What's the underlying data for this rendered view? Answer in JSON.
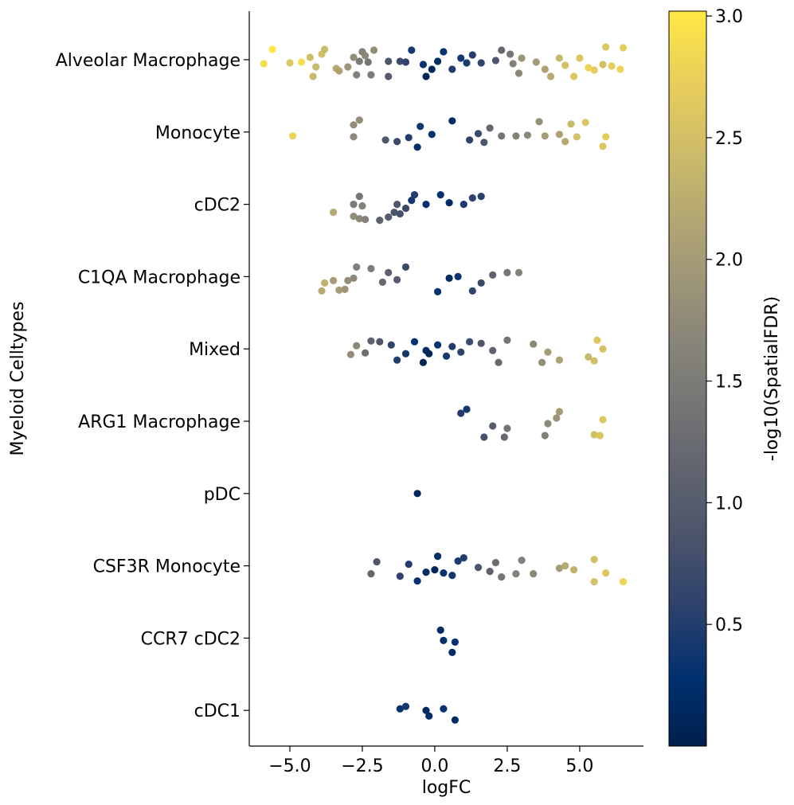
{
  "chart_data": {
    "type": "scatter",
    "xlabel": "logFC",
    "ylabel": "Myeloid Celltypes",
    "xlim": [
      -6.4,
      7.2
    ],
    "x_ticks": [
      -5.0,
      -2.5,
      0.0,
      2.5,
      5.0
    ],
    "x_tick_labels": [
      "−5.0",
      "−2.5",
      "0.0",
      "2.5",
      "5.0"
    ],
    "categories": [
      "Alveolar Macrophage",
      "Monocyte",
      "cDC2",
      "C1QA Macrophage",
      "Mixed",
      "ARG1 Macrophage",
      "pDC",
      "CSF3R Monocyte",
      "CCR7 cDC2",
      "cDC1"
    ],
    "color_metric": "-log10(SpatialFDR)",
    "colorbar": {
      "label": "-log10(SpatialFDR)",
      "range": [
        0.0,
        3.02
      ],
      "ticks": [
        0.5,
        1.0,
        1.5,
        2.0,
        2.5,
        3.0
      ],
      "tick_labels": [
        "0.5",
        "1.0",
        "1.5",
        "2.0",
        "2.5",
        "3.0"
      ],
      "colormap": "cividis",
      "colors": [
        "#00204c",
        "#00306f",
        "#2a406c",
        "#48526b",
        "#5e626e",
        "#727374",
        "#878479",
        "#9e9677",
        "#b6a971",
        "#d0be67",
        "#eacf5a",
        "#ffe945"
      ]
    },
    "grid": false,
    "legend": "colorbar-right",
    "series": [
      {
        "category": "Alveolar Macrophage",
        "points": [
          [
            -5.9,
            0.05,
            2.9
          ],
          [
            -5.6,
            -0.13,
            3.0
          ],
          [
            -5.0,
            0.04,
            2.6
          ],
          [
            -4.6,
            0.03,
            2.9
          ],
          [
            -4.2,
            0.21,
            2.4
          ],
          [
            -4.3,
            -0.03,
            2.5
          ],
          [
            -4.1,
            0.09,
            2.4
          ],
          [
            -3.9,
            -0.07,
            2.5
          ],
          [
            -3.8,
            -0.13,
            2.4
          ],
          [
            -3.4,
            0.11,
            2.2
          ],
          [
            -3.3,
            0.14,
            2.1
          ],
          [
            -3.0,
            0.09,
            1.9
          ],
          [
            -2.8,
            -0.03,
            1.8
          ],
          [
            -2.7,
            0.19,
            1.6
          ],
          [
            -2.6,
            0.02,
            1.5
          ],
          [
            -2.5,
            -0.1,
            1.6
          ],
          [
            -2.4,
            -0.05,
            1.7
          ],
          [
            -2.3,
            0.03,
            1.4
          ],
          [
            -2.2,
            0.19,
            1.5
          ],
          [
            -2.1,
            -0.12,
            1.8
          ],
          [
            -1.6,
            0.21,
            1.0
          ],
          [
            -1.6,
            0.02,
            0.9
          ],
          [
            -1.2,
            0.02,
            0.7
          ],
          [
            -1.0,
            0.03,
            0.6
          ],
          [
            -0.8,
            -0.12,
            0.4
          ],
          [
            -0.4,
            0.06,
            0.3
          ],
          [
            -0.3,
            0.21,
            0.1
          ],
          [
            -0.1,
            0.12,
            0.15
          ],
          [
            0.1,
            0.02,
            0.2
          ],
          [
            0.3,
            -0.1,
            0.3
          ],
          [
            0.6,
            0.12,
            0.5
          ],
          [
            0.9,
            -0.02,
            0.4
          ],
          [
            1.1,
            0.04,
            0.45
          ],
          [
            1.3,
            -0.06,
            0.5
          ],
          [
            1.6,
            0.04,
            0.6
          ],
          [
            2.1,
            0.01,
            0.9
          ],
          [
            2.3,
            -0.12,
            1.2
          ],
          [
            2.6,
            -0.07,
            1.4
          ],
          [
            2.7,
            0.05,
            1.6
          ],
          [
            2.9,
            0.17,
            1.7
          ],
          [
            3.0,
            -0.02,
            1.9
          ],
          [
            3.5,
            0.03,
            2.0
          ],
          [
            3.8,
            0.12,
            2.1
          ],
          [
            4.0,
            0.21,
            2.2
          ],
          [
            4.3,
            -0.02,
            2.4
          ],
          [
            4.5,
            0.07,
            2.5
          ],
          [
            4.8,
            0.21,
            2.6
          ],
          [
            5.0,
            -0.02,
            2.6
          ],
          [
            5.3,
            0.1,
            2.8
          ],
          [
            5.5,
            0.13,
            2.7
          ],
          [
            5.8,
            0.06,
            2.5
          ],
          [
            5.9,
            -0.16,
            2.6
          ],
          [
            6.1,
            0.08,
            2.7
          ],
          [
            6.4,
            0.12,
            2.8
          ],
          [
            6.5,
            -0.15,
            2.7
          ]
        ]
      },
      {
        "category": "Monocyte",
        "points": [
          [
            -4.9,
            0.05,
            2.8
          ],
          [
            -2.8,
            0.06,
            1.7
          ],
          [
            -2.8,
            -0.09,
            1.8
          ],
          [
            -2.6,
            -0.15,
            1.8
          ],
          [
            -1.7,
            0.1,
            0.9
          ],
          [
            -1.3,
            0.12,
            0.7
          ],
          [
            -0.9,
            0.07,
            0.5
          ],
          [
            -0.6,
            0.19,
            0.2
          ],
          [
            -0.5,
            -0.07,
            0.4
          ],
          [
            -0.1,
            0.03,
            0.3
          ],
          [
            0.6,
            -0.14,
            0.2
          ],
          [
            1.2,
            0.1,
            0.6
          ],
          [
            1.5,
            0.02,
            0.7
          ],
          [
            1.7,
            0.13,
            0.9
          ],
          [
            1.9,
            -0.05,
            1.2
          ],
          [
            2.3,
            0.05,
            1.4
          ],
          [
            2.8,
            0.05,
            1.6
          ],
          [
            3.2,
            0.04,
            1.7
          ],
          [
            3.6,
            -0.13,
            1.8
          ],
          [
            3.8,
            0.05,
            2.0
          ],
          [
            4.3,
            0.03,
            2.1
          ],
          [
            4.5,
            0.12,
            2.2
          ],
          [
            4.7,
            -0.1,
            2.4
          ],
          [
            4.9,
            0.06,
            2.5
          ],
          [
            5.2,
            -0.12,
            2.6
          ],
          [
            5.8,
            0.18,
            2.6
          ],
          [
            5.9,
            0.06,
            2.7
          ]
        ]
      },
      {
        "category": "cDC2",
        "points": [
          [
            -3.5,
            0.1,
            2.2
          ],
          [
            -2.8,
            0.15,
            1.8
          ],
          [
            -2.6,
            0.18,
            1.7
          ],
          [
            -2.4,
            0.19,
            1.6
          ],
          [
            -2.6,
            -0.1,
            1.4
          ],
          [
            -2.8,
            0.0,
            1.5
          ],
          [
            -2.5,
            0.02,
            1.6
          ],
          [
            -1.9,
            0.2,
            1.1
          ],
          [
            -1.6,
            0.16,
            1.0
          ],
          [
            -1.4,
            0.1,
            0.9
          ],
          [
            -1.2,
            0.12,
            0.8
          ],
          [
            -1.0,
            0.05,
            0.7
          ],
          [
            -0.8,
            -0.05,
            0.4
          ],
          [
            -1.3,
            0.0,
            0.9
          ],
          [
            -0.7,
            -0.12,
            0.5
          ],
          [
            -0.3,
            0.0,
            0.3
          ],
          [
            0.2,
            -0.12,
            0.3
          ],
          [
            0.5,
            -0.02,
            0.2
          ],
          [
            1.0,
            0.0,
            0.45
          ],
          [
            1.3,
            -0.08,
            0.6
          ],
          [
            1.6,
            -0.1,
            0.55
          ]
        ]
      },
      {
        "category": "C1QA Macrophage",
        "points": [
          [
            -3.9,
            0.18,
            2.2
          ],
          [
            -3.8,
            0.08,
            2.3
          ],
          [
            -3.5,
            0.05,
            2.0
          ],
          [
            -3.3,
            0.17,
            2.0
          ],
          [
            -3.1,
            0.16,
            1.9
          ],
          [
            -3.0,
            0.05,
            1.8
          ],
          [
            -2.8,
            0.02,
            1.7
          ],
          [
            -2.7,
            -0.12,
            1.6
          ],
          [
            -2.2,
            -0.1,
            1.5
          ],
          [
            -1.8,
            0.07,
            1.2
          ],
          [
            -1.6,
            -0.05,
            1.1
          ],
          [
            -1.3,
            0.04,
            1.0
          ],
          [
            -1.0,
            -0.12,
            0.7
          ],
          [
            0.1,
            0.19,
            0.3
          ],
          [
            0.5,
            0.02,
            0.2
          ],
          [
            0.8,
            0.0,
            0.35
          ],
          [
            1.3,
            0.18,
            0.6
          ],
          [
            1.6,
            0.08,
            0.7
          ],
          [
            2.0,
            -0.02,
            1.1
          ],
          [
            2.5,
            -0.05,
            1.4
          ],
          [
            2.9,
            -0.05,
            1.6
          ]
        ]
      },
      {
        "category": "Mixed",
        "points": [
          [
            -2.9,
            0.07,
            1.8
          ],
          [
            -2.7,
            -0.04,
            1.7
          ],
          [
            -2.4,
            0.05,
            1.3
          ],
          [
            -2.2,
            -0.1,
            1.1
          ],
          [
            -1.9,
            -0.09,
            0.9
          ],
          [
            -1.5,
            -0.05,
            0.6
          ],
          [
            -1.3,
            0.14,
            0.5
          ],
          [
            -1.0,
            0.06,
            0.4
          ],
          [
            -0.7,
            -0.09,
            0.3
          ],
          [
            -0.4,
            0.17,
            0.1
          ],
          [
            -0.3,
            0.02,
            0.2
          ],
          [
            -0.2,
            0.06,
            0.1
          ],
          [
            0.1,
            -0.05,
            0.3
          ],
          [
            0.4,
            0.09,
            0.4
          ],
          [
            0.6,
            -0.03,
            0.5
          ],
          [
            0.9,
            0.04,
            0.6
          ],
          [
            1.2,
            -0.09,
            0.7
          ],
          [
            1.6,
            -0.07,
            0.9
          ],
          [
            2.0,
            0.02,
            1.1
          ],
          [
            2.2,
            0.17,
            1.2
          ],
          [
            2.5,
            -0.11,
            1.4
          ],
          [
            3.4,
            -0.06,
            1.7
          ],
          [
            3.7,
            0.17,
            1.8
          ],
          [
            3.9,
            0.04,
            2.0
          ],
          [
            4.3,
            0.14,
            2.1
          ],
          [
            5.3,
            0.1,
            2.4
          ],
          [
            5.5,
            0.15,
            2.5
          ],
          [
            5.6,
            -0.11,
            2.6
          ],
          [
            5.8,
            0.0,
            2.5
          ]
        ]
      },
      {
        "category": "ARG1 Macrophage",
        "points": [
          [
            0.9,
            -0.1,
            0.5
          ],
          [
            1.1,
            -0.15,
            0.4
          ],
          [
            1.7,
            0.2,
            0.8
          ],
          [
            2.0,
            0.06,
            1.0
          ],
          [
            2.4,
            0.2,
            1.2
          ],
          [
            2.5,
            0.09,
            1.4
          ],
          [
            3.8,
            0.18,
            1.6
          ],
          [
            3.9,
            0.03,
            1.7
          ],
          [
            4.2,
            -0.04,
            1.9
          ],
          [
            4.3,
            -0.12,
            2.0
          ],
          [
            5.5,
            0.17,
            2.5
          ],
          [
            5.7,
            0.18,
            2.6
          ],
          [
            5.8,
            -0.02,
            2.6
          ]
        ]
      },
      {
        "category": "pDC",
        "points": [
          [
            -0.6,
            0.0,
            0.1
          ]
        ]
      },
      {
        "category": "CSF3R Monocyte",
        "points": [
          [
            -2.2,
            0.1,
            1.2
          ],
          [
            -2.0,
            -0.05,
            0.9
          ],
          [
            -1.2,
            0.13,
            0.6
          ],
          [
            -0.9,
            -0.02,
            0.5
          ],
          [
            -0.6,
            0.19,
            0.3
          ],
          [
            -0.3,
            0.08,
            0.2
          ],
          [
            0.0,
            0.05,
            0.1
          ],
          [
            0.1,
            -0.12,
            0.2
          ],
          [
            0.3,
            0.09,
            0.3
          ],
          [
            0.6,
            0.12,
            0.4
          ],
          [
            0.8,
            -0.06,
            0.45
          ],
          [
            1.0,
            -0.1,
            0.5
          ],
          [
            1.5,
            0.02,
            0.9
          ],
          [
            1.9,
            0.07,
            1.1
          ],
          [
            2.1,
            -0.04,
            1.3
          ],
          [
            2.3,
            0.14,
            1.4
          ],
          [
            2.8,
            0.1,
            1.6
          ],
          [
            3.0,
            -0.07,
            1.6
          ],
          [
            3.4,
            0.1,
            1.7
          ],
          [
            4.3,
            0.03,
            2.0
          ],
          [
            4.5,
            0.0,
            2.2
          ],
          [
            4.8,
            0.05,
            2.3
          ],
          [
            5.5,
            0.2,
            2.5
          ],
          [
            5.9,
            0.09,
            2.6
          ],
          [
            6.5,
            0.2,
            2.8
          ],
          [
            5.5,
            -0.08,
            2.5
          ]
        ]
      },
      {
        "category": "CCR7 cDC2",
        "points": [
          [
            0.6,
            0.18,
            0.2
          ],
          [
            0.7,
            0.05,
            0.3
          ],
          [
            0.3,
            0.03,
            0.25
          ],
          [
            0.2,
            -0.1,
            0.2
          ]
        ]
      },
      {
        "category": "cDC1",
        "points": [
          [
            -1.2,
            -0.02,
            0.3
          ],
          [
            -1.0,
            -0.05,
            0.4
          ],
          [
            -0.2,
            0.07,
            0.2
          ],
          [
            -0.3,
            0.0,
            0.15
          ],
          [
            0.3,
            -0.02,
            0.3
          ],
          [
            0.7,
            0.12,
            0.2
          ]
        ]
      }
    ]
  }
}
